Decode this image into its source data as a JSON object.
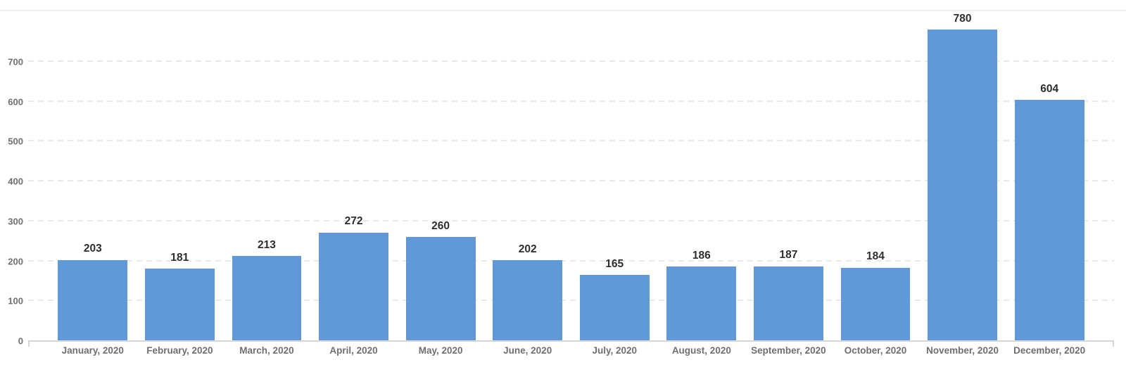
{
  "chart_data": {
    "type": "bar",
    "title": "",
    "xlabel": "",
    "ylabel": "",
    "categories": [
      "January, 2020",
      "February, 2020",
      "March, 2020",
      "April, 2020",
      "May, 2020",
      "June, 2020",
      "July, 2020",
      "August, 2020",
      "September, 2020",
      "October, 2020",
      "November, 2020",
      "December, 2020"
    ],
    "values": [
      203,
      181,
      213,
      272,
      260,
      202,
      165,
      186,
      187,
      184,
      780,
      604
    ],
    "value_labels": [
      "203",
      "181",
      "213",
      "272",
      "260",
      "202",
      "165",
      "186",
      "187",
      "184",
      "780",
      "604"
    ],
    "yticks": [
      0,
      100,
      200,
      300,
      400,
      500,
      600,
      700
    ],
    "ylim": [
      0,
      830
    ],
    "grid": "horizontal-dashed",
    "legend": "none",
    "colors": {
      "bar": "#5f99d7",
      "value_label": "#2e2e2e",
      "tick_label": "#6f6f6f",
      "gridline": "#e9e9e9",
      "axis_line": "#d7d7d7",
      "top_border": "#eeeeee",
      "background": "#ffffff"
    }
  }
}
